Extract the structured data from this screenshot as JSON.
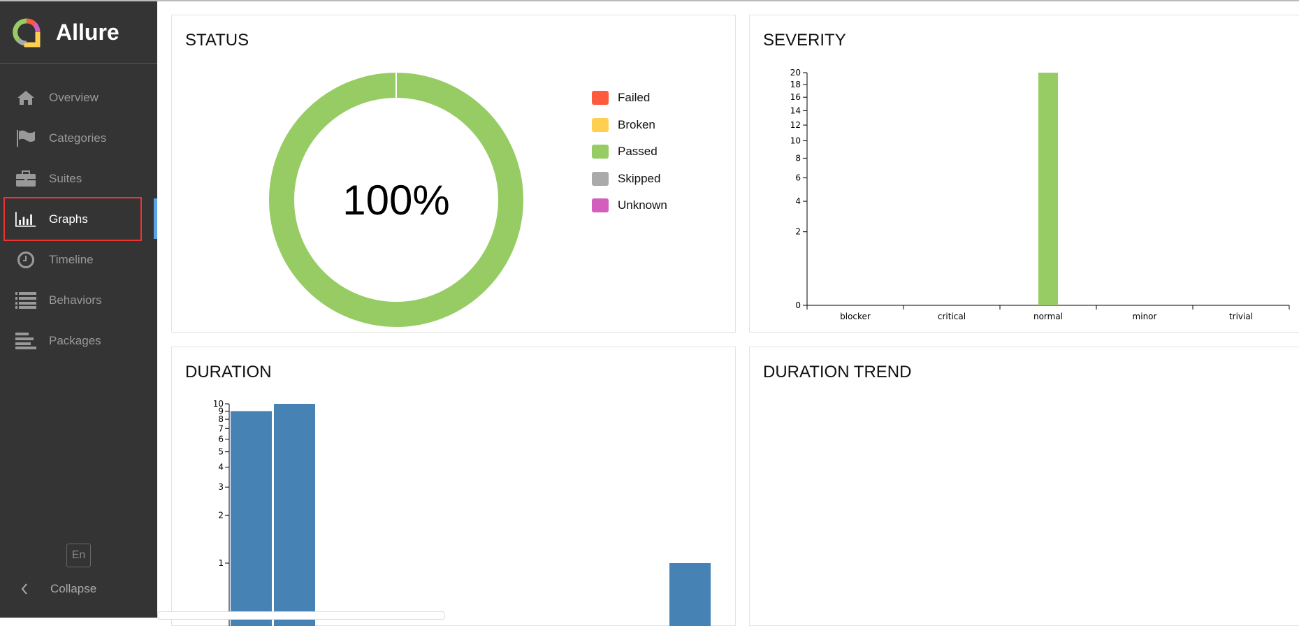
{
  "app": {
    "name": "Allure"
  },
  "sidebar": {
    "items": [
      {
        "label": "Overview",
        "icon": "home-icon"
      },
      {
        "label": "Categories",
        "icon": "flag-icon"
      },
      {
        "label": "Suites",
        "icon": "briefcase-icon"
      },
      {
        "label": "Graphs",
        "icon": "bar-chart-icon",
        "active": true
      },
      {
        "label": "Timeline",
        "icon": "clock-icon"
      },
      {
        "label": "Behaviors",
        "icon": "list-icon"
      },
      {
        "label": "Packages",
        "icon": "align-left-icon"
      }
    ],
    "lang": "En",
    "collapse": "Collapse"
  },
  "panels": {
    "status": "STATUS",
    "severity": "SEVERITY",
    "duration": "DURATION",
    "duration_trend": "DURATION TREND"
  },
  "colors": {
    "failed": "#fd5a3e",
    "broken": "#ffd050",
    "passed": "#97cc64",
    "skipped": "#aaaaaa",
    "unknown": "#d35ebe",
    "duration": "#4682b4",
    "accent": "#5ba3e6"
  },
  "chart_data": [
    {
      "type": "pie",
      "title": "STATUS",
      "center_label": "100%",
      "legend": [
        "Failed",
        "Broken",
        "Passed",
        "Skipped",
        "Unknown"
      ],
      "values": {
        "Failed": 0,
        "Broken": 0,
        "Passed": 20,
        "Skipped": 0,
        "Unknown": 0
      }
    },
    {
      "type": "bar",
      "title": "SEVERITY",
      "categories": [
        "blocker",
        "critical",
        "normal",
        "minor",
        "trivial"
      ],
      "values": [
        0,
        0,
        20,
        0,
        0
      ],
      "yscale": "sqrt",
      "ylim": [
        0,
        20
      ],
      "yticks": [
        0,
        2,
        4,
        6,
        8,
        10,
        12,
        14,
        16,
        18,
        20
      ]
    },
    {
      "type": "bar",
      "title": "DURATION",
      "values": [
        9,
        10,
        1
      ],
      "yscale": "log",
      "yticks": [
        1,
        2,
        3,
        4,
        5,
        6,
        7,
        8,
        9,
        10
      ]
    }
  ]
}
